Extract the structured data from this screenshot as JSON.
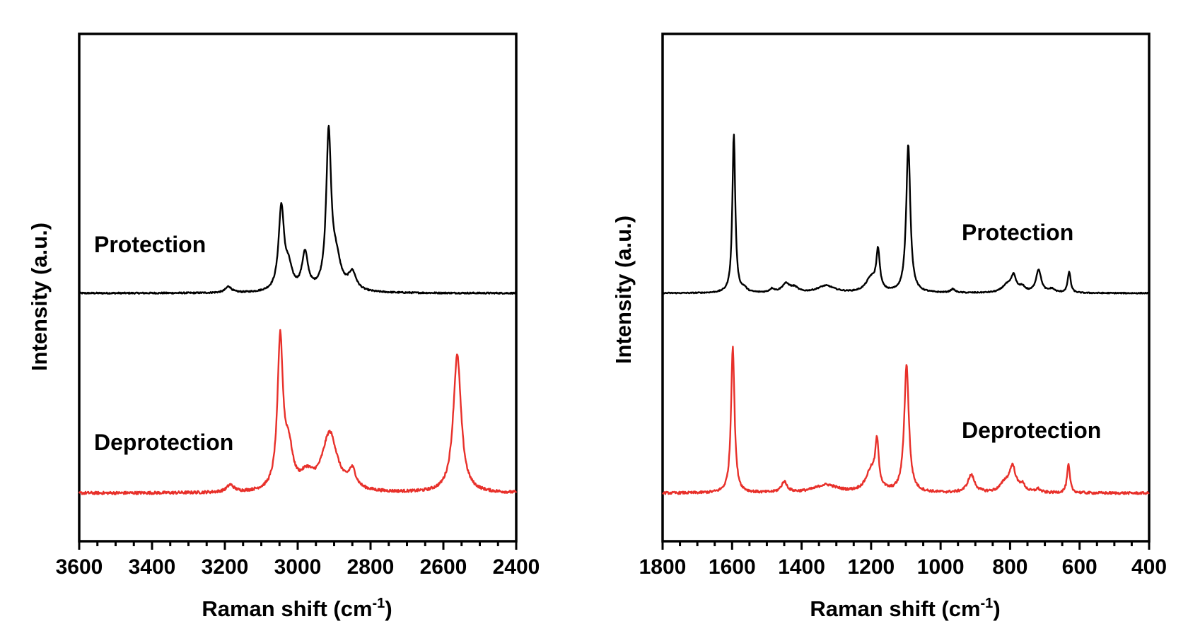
{
  "colors": {
    "protection": "#000000",
    "deprotection": "#e8302a"
  },
  "chart_data": [
    {
      "type": "line",
      "xlabel_main": "Raman shift (cm",
      "xlabel_sup": "-1",
      "xlabel_close": ")",
      "ylabel": "Intensity (a.u.)",
      "xlim": [
        3600,
        2400
      ],
      "xticks": [
        "3600",
        "3400",
        "3200",
        "3000",
        "2800",
        "2600",
        "2400"
      ],
      "yticks": [],
      "grid": false,
      "legend": "none",
      "annotations": [
        {
          "id": "protection",
          "text": "Protection"
        },
        {
          "id": "deprotection",
          "text": "Deprotection"
        }
      ],
      "series": [
        {
          "id": "protection",
          "baseline": 0.0,
          "noise": 0.004,
          "peaks": [
            {
              "x": 3190,
              "height": 0.035,
              "width": 10
            },
            {
              "x": 3045,
              "height": 0.47,
              "width": 9
            },
            {
              "x": 3025,
              "height": 0.12,
              "width": 12
            },
            {
              "x": 2980,
              "height": 0.21,
              "width": 10
            },
            {
              "x": 2915,
              "height": 0.87,
              "width": 8
            },
            {
              "x": 2895,
              "height": 0.17,
              "width": 16
            },
            {
              "x": 2850,
              "height": 0.1,
              "width": 13
            }
          ]
        },
        {
          "id": "deprotection",
          "baseline": 0.0,
          "noise": 0.008,
          "peaks": [
            {
              "x": 3185,
              "height": 0.04,
              "width": 12
            },
            {
              "x": 3048,
              "height": 0.84,
              "width": 9
            },
            {
              "x": 3025,
              "height": 0.22,
              "width": 14
            },
            {
              "x": 2975,
              "height": 0.08,
              "width": 20
            },
            {
              "x": 2912,
              "height": 0.33,
              "width": 25
            },
            {
              "x": 2850,
              "height": 0.1,
              "width": 12
            },
            {
              "x": 2562,
              "height": 0.78,
              "width": 13
            }
          ]
        }
      ]
    },
    {
      "type": "line",
      "xlabel_main": "Raman shift (cm",
      "xlabel_sup": "-1",
      "xlabel_close": ")",
      "ylabel": "Intensity (a.u.)",
      "xlim": [
        1800,
        400
      ],
      "xticks": [
        "1800",
        "1600",
        "1400",
        "1200",
        "1000",
        "800",
        "600",
        "400"
      ],
      "yticks": [],
      "grid": false,
      "legend": "none",
      "annotations": [
        {
          "id": "protection",
          "text": "Protection"
        },
        {
          "id": "deprotection",
          "text": "Deprotection"
        }
      ],
      "series": [
        {
          "id": "protection",
          "baseline": 0.0,
          "noise": 0.003,
          "peaks": [
            {
              "x": 1595,
              "height": 0.9,
              "width": 5
            },
            {
              "x": 1565,
              "height": 0.02,
              "width": 8
            },
            {
              "x": 1485,
              "height": 0.02,
              "width": 8
            },
            {
              "x": 1445,
              "height": 0.05,
              "width": 14
            },
            {
              "x": 1420,
              "height": 0.025,
              "width": 12
            },
            {
              "x": 1330,
              "height": 0.04,
              "width": 30
            },
            {
              "x": 1200,
              "height": 0.08,
              "width": 18
            },
            {
              "x": 1180,
              "height": 0.22,
              "width": 6
            },
            {
              "x": 1093,
              "height": 0.84,
              "width": 7
            },
            {
              "x": 965,
              "height": 0.02,
              "width": 8
            },
            {
              "x": 810,
              "height": 0.04,
              "width": 16
            },
            {
              "x": 790,
              "height": 0.09,
              "width": 9
            },
            {
              "x": 765,
              "height": 0.03,
              "width": 10
            },
            {
              "x": 718,
              "height": 0.13,
              "width": 9
            },
            {
              "x": 680,
              "height": 0.02,
              "width": 10
            },
            {
              "x": 630,
              "height": 0.12,
              "width": 5
            }
          ]
        },
        {
          "id": "deprotection",
          "baseline": 0.0,
          "noise": 0.007,
          "peaks": [
            {
              "x": 1598,
              "height": 0.83,
              "width": 6
            },
            {
              "x": 1450,
              "height": 0.06,
              "width": 10
            },
            {
              "x": 1330,
              "height": 0.045,
              "width": 40
            },
            {
              "x": 1200,
              "height": 0.12,
              "width": 18
            },
            {
              "x": 1183,
              "height": 0.25,
              "width": 6
            },
            {
              "x": 1098,
              "height": 0.72,
              "width": 8
            },
            {
              "x": 912,
              "height": 0.1,
              "width": 12
            },
            {
              "x": 815,
              "height": 0.05,
              "width": 16
            },
            {
              "x": 793,
              "height": 0.14,
              "width": 11
            },
            {
              "x": 765,
              "height": 0.04,
              "width": 10
            },
            {
              "x": 720,
              "height": 0.02,
              "width": 8
            },
            {
              "x": 632,
              "height": 0.16,
              "width": 5
            }
          ]
        }
      ]
    }
  ]
}
